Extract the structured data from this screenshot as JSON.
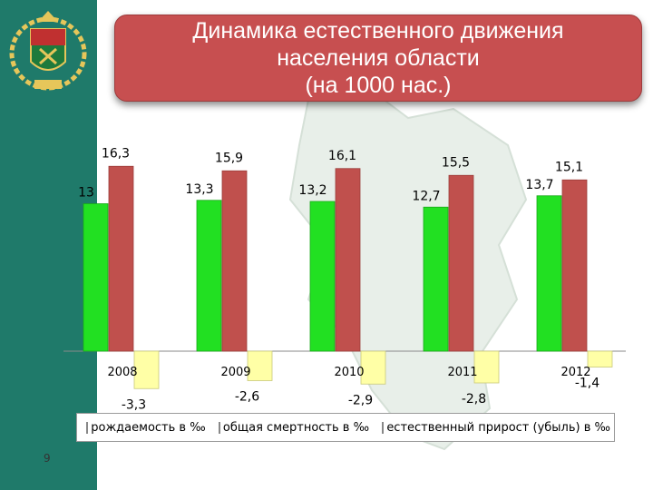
{
  "title": "Динамика естественного движения\nнаселения области\n(на 1000 нас.)",
  "page_number": "9",
  "colors": {
    "sidebar": "#1f7a6a",
    "title_bg": "#c74f50",
    "births": "#22e022",
    "deaths": "#c0504d",
    "growth": "#ffffa6"
  },
  "chart_data": {
    "type": "bar",
    "categories": [
      "2008",
      "2009",
      "2010",
      "2011",
      "2012"
    ],
    "series": [
      {
        "name": "рождаемость в ‰",
        "values": [
          13,
          13.3,
          13.2,
          12.7,
          13.7
        ],
        "labels": [
          "13",
          "13,3",
          "13,2",
          "12,7",
          "13,7"
        ]
      },
      {
        "name": "общая смертность в ‰",
        "values": [
          16.3,
          15.9,
          16.1,
          15.5,
          15.1
        ],
        "labels": [
          "16,3",
          "15,9",
          "16,1",
          "15,5",
          "15,1"
        ]
      },
      {
        "name": "естественный прирост (убыль) в ‰",
        "values": [
          -3.3,
          -2.6,
          -2.9,
          -2.8,
          -1.4
        ],
        "labels": [
          "-3,3",
          "-2,6",
          "-2,9",
          "-2,8",
          "-1,4"
        ]
      }
    ],
    "legend": "bottom"
  }
}
